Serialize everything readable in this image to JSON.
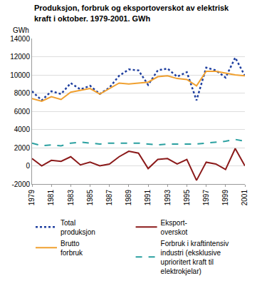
{
  "chart_data": {
    "type": "line",
    "title": "Produksjon, forbruk og eksportoverskot av elektrisk\nkraft i oktober. 1979-2001. GWh",
    "y_label": "GWh",
    "x": [
      1979,
      1980,
      1981,
      1982,
      1983,
      1984,
      1985,
      1986,
      1987,
      1988,
      1989,
      1990,
      1991,
      1992,
      1993,
      1994,
      1995,
      1996,
      1997,
      1998,
      1999,
      2000,
      2001
    ],
    "xlim": [
      1979,
      2001
    ],
    "xticks": [
      1979,
      1981,
      1983,
      1985,
      1987,
      1989,
      1991,
      1993,
      1995,
      1997,
      1999,
      2001
    ],
    "ylim": [
      -2000,
      14000
    ],
    "yticks": [
      -2000,
      0,
      2000,
      4000,
      6000,
      8000,
      10000,
      12000,
      14000
    ],
    "grid": true,
    "legend": "bottom",
    "series": [
      {
        "name": "Total\nproduksjon",
        "color": "#1f3f9f",
        "line_style": "dotted",
        "values": [
          8200,
          7200,
          8200,
          7900,
          9100,
          8400,
          8800,
          7900,
          8600,
          9900,
          10600,
          10500,
          8900,
          10500,
          10700,
          9800,
          10300,
          7200,
          10800,
          10500,
          9700,
          11900,
          9900
        ]
      },
      {
        "name": "Eksport-\noverskot",
        "color": "#8b1a1a",
        "line_style": "solid",
        "values": [
          800,
          0,
          600,
          500,
          1000,
          100,
          400,
          0,
          200,
          1000,
          1600,
          1400,
          -300,
          700,
          800,
          200,
          700,
          -1600,
          400,
          200,
          -400,
          1900,
          0
        ]
      },
      {
        "name": "Brutto\nforbruk",
        "color": "#f0a030",
        "line_style": "solid",
        "values": [
          7400,
          7100,
          7600,
          7300,
          8100,
          8300,
          8500,
          7900,
          8500,
          9100,
          9000,
          9100,
          9200,
          9800,
          9900,
          9600,
          9500,
          8800,
          10400,
          10400,
          10200,
          10000,
          9900
        ]
      },
      {
        "name": "Forbruk i kraftintensiv\nindustri (eksklusive\nuprioritert kraft til\nelektrokjelar)",
        "color": "#2aa0a0",
        "line_style": "dashed",
        "values": [
          2500,
          2200,
          2300,
          2200,
          2500,
          2600,
          2500,
          2400,
          2500,
          2500,
          2500,
          2500,
          2400,
          2300,
          2400,
          2400,
          2400,
          2400,
          2500,
          2600,
          2700,
          2900,
          2700
        ]
      }
    ]
  }
}
